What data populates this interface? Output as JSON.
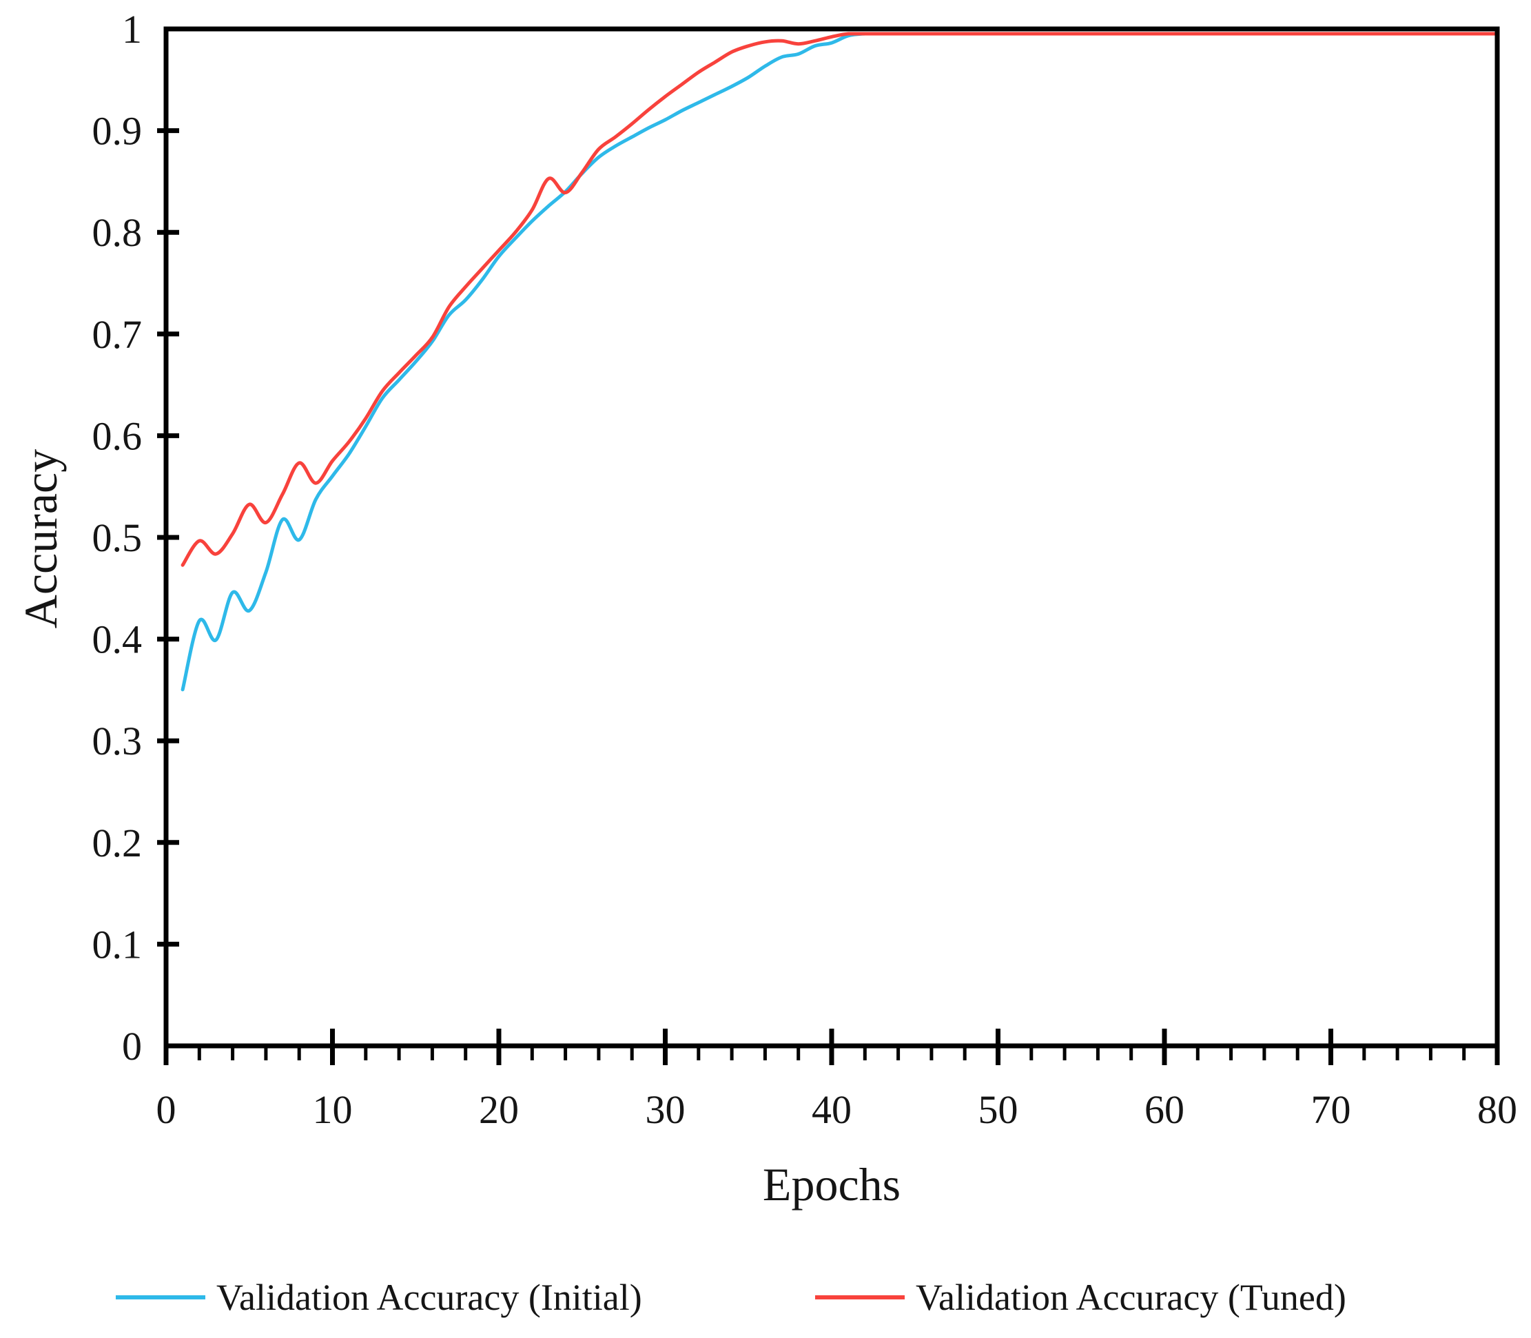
{
  "chart_data": {
    "type": "line",
    "title": "",
    "xlabel": "Epochs",
    "ylabel": "Accuracy",
    "xlim": [
      0,
      80
    ],
    "ylim": [
      0,
      1
    ],
    "x_major_ticks": [
      0,
      10,
      20,
      30,
      40,
      50,
      60,
      70,
      80
    ],
    "x_minor_tick_step": 2,
    "y_ticks": [
      1,
      0.9,
      0.8,
      0.7,
      0.6,
      0.5,
      0.4,
      0.3,
      0.2,
      0.1,
      0
    ],
    "y_tick_labels": [
      "1",
      "0.9",
      "0.8",
      "0.7",
      "0.6",
      "0.5",
      "0.4",
      "0.3",
      "0.2",
      "0.1",
      "0"
    ],
    "grid": false,
    "legend_position": "bottom",
    "frame_color": "#000000",
    "x_start": 1,
    "x_step": 1,
    "series": [
      {
        "name": "Validation Accuracy (Initial)",
        "color": "#2EB9E9",
        "values": [
          0.352,
          0.42,
          0.401,
          0.448,
          0.43,
          0.468,
          0.52,
          0.5,
          0.54,
          0.563,
          0.585,
          0.612,
          0.64,
          0.658,
          0.676,
          0.696,
          0.722,
          0.737,
          0.757,
          0.78,
          0.798,
          0.815,
          0.83,
          0.844,
          0.862,
          0.878,
          0.889,
          0.898,
          0.907,
          0.915,
          0.924,
          0.932,
          0.94,
          0.948,
          0.957,
          0.968,
          0.977,
          0.98,
          0.988,
          0.991,
          0.998,
          1.0,
          1.0,
          1.0,
          1.0,
          1.0,
          1.0,
          1.0,
          1.0,
          1.0,
          1.0,
          1.0,
          1.0,
          1.0,
          1.0,
          1.0,
          1.0,
          1.0,
          1.0,
          1.0,
          1.0,
          1.0,
          1.0,
          1.0,
          1.0,
          1.0,
          1.0,
          1.0,
          1.0,
          1.0,
          1.0,
          1.0,
          1.0,
          1.0,
          1.0,
          1.0,
          1.0,
          1.0,
          1.0,
          1.0
        ]
      },
      {
        "name": "Validation Accuracy (Tuned)",
        "color": "#F8423C",
        "values": [
          0.475,
          0.499,
          0.486,
          0.506,
          0.535,
          0.517,
          0.545,
          0.576,
          0.556,
          0.578,
          0.597,
          0.62,
          0.647,
          0.665,
          0.682,
          0.7,
          0.73,
          0.75,
          0.768,
          0.786,
          0.804,
          0.826,
          0.857,
          0.843,
          0.863,
          0.886,
          0.898,
          0.911,
          0.925,
          0.938,
          0.95,
          0.962,
          0.972,
          0.982,
          0.988,
          0.992,
          0.993,
          0.99,
          0.993,
          0.997,
          1.0,
          1.0,
          1.0,
          1.0,
          1.0,
          1.0,
          1.0,
          1.0,
          1.0,
          1.0,
          1.0,
          1.0,
          1.0,
          1.0,
          1.0,
          1.0,
          1.0,
          1.0,
          1.0,
          1.0,
          1.0,
          1.0,
          1.0,
          1.0,
          1.0,
          1.0,
          1.0,
          1.0,
          1.0,
          1.0,
          1.0,
          1.0,
          1.0,
          1.0,
          1.0,
          1.0,
          1.0,
          1.0,
          1.0,
          1.0
        ]
      }
    ]
  }
}
